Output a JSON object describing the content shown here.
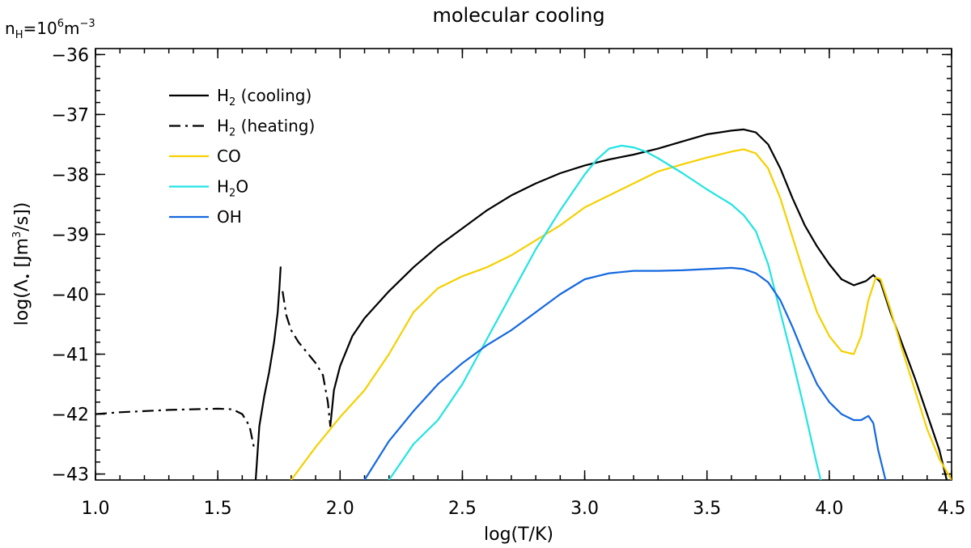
{
  "chart_data": {
    "type": "line",
    "title": "molecular cooling",
    "density_label": {
      "base": "n",
      "sub": "H",
      "eq": "=10",
      "sup": "6",
      "unit": "m",
      "unit_sup": "−3"
    },
    "xlabel": "log(T/K)",
    "ylabel": {
      "prefix": "log(Λ",
      "sub": "•",
      "mid": " [Jm",
      "sup": "3",
      "suffix": "/s])"
    },
    "xlim": [
      1.0,
      4.5
    ],
    "ylim": [
      -43.1,
      -35.9
    ],
    "xticks": [
      1.0,
      1.5,
      2.0,
      2.5,
      3.0,
      3.5,
      4.0,
      4.5
    ],
    "xtick_labels": [
      "1.0",
      "1.5",
      "2.0",
      "2.5",
      "3.0",
      "3.5",
      "4.0",
      "4.5"
    ],
    "yticks": [
      -43,
      -42,
      -41,
      -40,
      -39,
      -38,
      -37,
      -36
    ],
    "ytick_labels": [
      "−43",
      "−42",
      "−41",
      "−40",
      "−39",
      "−38",
      "−37",
      "−36"
    ],
    "legend_position": "top-left",
    "series": [
      {
        "name": "H2 (cooling)",
        "label_base": "H",
        "label_sub": "2",
        "label_rest": " (cooling)",
        "color": "#000000",
        "dash": "solid",
        "segments": [
          [
            [
              1.655,
              -43.1
            ],
            [
              1.67,
              -42.2
            ],
            [
              1.69,
              -41.7
            ],
            [
              1.71,
              -41.3
            ],
            [
              1.73,
              -40.8
            ],
            [
              1.745,
              -40.3
            ],
            [
              1.752,
              -39.9
            ],
            [
              1.757,
              -39.55
            ]
          ],
          [
            [
              1.96,
              -42.2
            ],
            [
              1.975,
              -41.6
            ],
            [
              2.0,
              -41.2
            ],
            [
              2.05,
              -40.7
            ],
            [
              2.1,
              -40.4
            ],
            [
              2.2,
              -39.95
            ],
            [
              2.3,
              -39.55
            ],
            [
              2.4,
              -39.2
            ],
            [
              2.5,
              -38.9
            ],
            [
              2.6,
              -38.6
            ],
            [
              2.7,
              -38.35
            ],
            [
              2.8,
              -38.15
            ],
            [
              2.9,
              -37.98
            ],
            [
              3.0,
              -37.85
            ],
            [
              3.1,
              -37.75
            ],
            [
              3.2,
              -37.67
            ],
            [
              3.3,
              -37.57
            ],
            [
              3.4,
              -37.45
            ],
            [
              3.5,
              -37.33
            ],
            [
              3.6,
              -37.27
            ],
            [
              3.65,
              -37.25
            ],
            [
              3.7,
              -37.3
            ],
            [
              3.75,
              -37.5
            ],
            [
              3.8,
              -37.9
            ],
            [
              3.85,
              -38.4
            ],
            [
              3.9,
              -38.85
            ],
            [
              3.95,
              -39.2
            ],
            [
              4.0,
              -39.5
            ],
            [
              4.05,
              -39.75
            ],
            [
              4.1,
              -39.85
            ],
            [
              4.15,
              -39.78
            ],
            [
              4.18,
              -39.68
            ],
            [
              4.21,
              -39.8
            ],
            [
              4.25,
              -40.3
            ],
            [
              4.3,
              -40.85
            ],
            [
              4.35,
              -41.4
            ],
            [
              4.4,
              -42.0
            ],
            [
              4.45,
              -42.6
            ],
            [
              4.48,
              -43.1
            ]
          ]
        ]
      },
      {
        "name": "H2 (heating)",
        "label_base": "H",
        "label_sub": "2",
        "label_rest": " (heating)",
        "color": "#000000",
        "dash": "dashdot",
        "segments": [
          [
            [
              1.0,
              -42.0
            ],
            [
              1.1,
              -41.97
            ],
            [
              1.2,
              -41.95
            ],
            [
              1.3,
              -41.93
            ],
            [
              1.4,
              -41.92
            ],
            [
              1.5,
              -41.91
            ],
            [
              1.56,
              -41.92
            ],
            [
              1.6,
              -42.0
            ],
            [
              1.63,
              -42.2
            ],
            [
              1.65,
              -42.6
            ]
          ],
          [
            [
              1.765,
              -39.95
            ],
            [
              1.78,
              -40.35
            ],
            [
              1.8,
              -40.6
            ],
            [
              1.83,
              -40.8
            ],
            [
              1.86,
              -40.95
            ],
            [
              1.9,
              -41.15
            ],
            [
              1.93,
              -41.35
            ],
            [
              1.95,
              -41.8
            ],
            [
              1.96,
              -42.2
            ]
          ]
        ]
      },
      {
        "name": "CO",
        "label_base": "CO",
        "label_sub": "",
        "label_rest": "",
        "color": "#f5d000",
        "dash": "solid",
        "segments": [
          [
            [
              1.8,
              -43.1
            ],
            [
              1.9,
              -42.55
            ],
            [
              2.0,
              -42.05
            ],
            [
              2.1,
              -41.6
            ],
            [
              2.2,
              -41.0
            ],
            [
              2.3,
              -40.3
            ],
            [
              2.4,
              -39.9
            ],
            [
              2.5,
              -39.7
            ],
            [
              2.6,
              -39.55
            ],
            [
              2.7,
              -39.35
            ],
            [
              2.8,
              -39.1
            ],
            [
              2.9,
              -38.85
            ],
            [
              3.0,
              -38.55
            ],
            [
              3.1,
              -38.35
            ],
            [
              3.2,
              -38.15
            ],
            [
              3.3,
              -37.95
            ],
            [
              3.4,
              -37.83
            ],
            [
              3.5,
              -37.72
            ],
            [
              3.6,
              -37.62
            ],
            [
              3.65,
              -37.58
            ],
            [
              3.7,
              -37.65
            ],
            [
              3.75,
              -37.9
            ],
            [
              3.8,
              -38.4
            ],
            [
              3.85,
              -39.05
            ],
            [
              3.9,
              -39.7
            ],
            [
              3.95,
              -40.3
            ],
            [
              4.0,
              -40.7
            ],
            [
              4.05,
              -40.95
            ],
            [
              4.1,
              -41.0
            ],
            [
              4.13,
              -40.7
            ],
            [
              4.16,
              -40.1
            ],
            [
              4.19,
              -39.72
            ],
            [
              4.21,
              -39.75
            ],
            [
              4.25,
              -40.25
            ],
            [
              4.3,
              -40.95
            ],
            [
              4.35,
              -41.6
            ],
            [
              4.4,
              -42.25
            ],
            [
              4.45,
              -42.75
            ],
            [
              4.5,
              -43.1
            ]
          ]
        ]
      },
      {
        "name": "H2O",
        "label_base": "H",
        "label_sub": "2",
        "label_rest": "O",
        "color": "#22e3e3",
        "dash": "solid",
        "segments": [
          [
            [
              2.2,
              -43.1
            ],
            [
              2.25,
              -42.8
            ],
            [
              2.3,
              -42.5
            ],
            [
              2.4,
              -42.1
            ],
            [
              2.5,
              -41.5
            ],
            [
              2.6,
              -40.75
            ],
            [
              2.7,
              -40.0
            ],
            [
              2.8,
              -39.25
            ],
            [
              2.9,
              -38.6
            ],
            [
              3.0,
              -38.0
            ],
            [
              3.05,
              -37.75
            ],
            [
              3.1,
              -37.57
            ],
            [
              3.15,
              -37.52
            ],
            [
              3.2,
              -37.55
            ],
            [
              3.25,
              -37.62
            ],
            [
              3.3,
              -37.73
            ],
            [
              3.4,
              -37.98
            ],
            [
              3.5,
              -38.25
            ],
            [
              3.6,
              -38.5
            ],
            [
              3.65,
              -38.68
            ],
            [
              3.7,
              -38.95
            ],
            [
              3.75,
              -39.5
            ],
            [
              3.8,
              -40.3
            ],
            [
              3.85,
              -41.1
            ],
            [
              3.9,
              -41.95
            ],
            [
              3.95,
              -42.85
            ],
            [
              3.965,
              -43.1
            ]
          ]
        ]
      },
      {
        "name": "OH",
        "label_base": "OH",
        "label_sub": "",
        "label_rest": "",
        "color": "#1568e0",
        "dash": "solid",
        "segments": [
          [
            [
              2.1,
              -43.1
            ],
            [
              2.2,
              -42.45
            ],
            [
              2.3,
              -41.95
            ],
            [
              2.4,
              -41.5
            ],
            [
              2.5,
              -41.15
            ],
            [
              2.6,
              -40.85
            ],
            [
              2.7,
              -40.6
            ],
            [
              2.8,
              -40.3
            ],
            [
              2.9,
              -40.0
            ],
            [
              3.0,
              -39.75
            ],
            [
              3.1,
              -39.65
            ],
            [
              3.2,
              -39.61
            ],
            [
              3.3,
              -39.61
            ],
            [
              3.4,
              -39.6
            ],
            [
              3.5,
              -39.58
            ],
            [
              3.6,
              -39.56
            ],
            [
              3.65,
              -39.58
            ],
            [
              3.7,
              -39.65
            ],
            [
              3.75,
              -39.8
            ],
            [
              3.8,
              -40.1
            ],
            [
              3.85,
              -40.55
            ],
            [
              3.9,
              -41.05
            ],
            [
              3.95,
              -41.5
            ],
            [
              4.0,
              -41.8
            ],
            [
              4.05,
              -42.0
            ],
            [
              4.1,
              -42.1
            ],
            [
              4.13,
              -42.1
            ],
            [
              4.16,
              -42.03
            ],
            [
              4.18,
              -42.15
            ],
            [
              4.2,
              -42.6
            ],
            [
              4.23,
              -43.1
            ]
          ]
        ]
      }
    ]
  }
}
